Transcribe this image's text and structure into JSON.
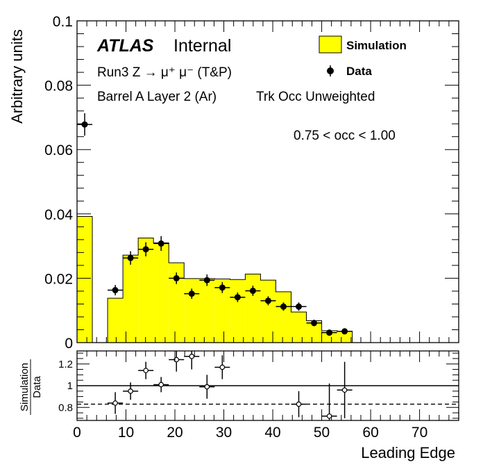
{
  "chart_data": [
    {
      "type": "bar",
      "role": "main",
      "ylabel": "Arbitrary units",
      "xlim": [
        0,
        78
      ],
      "ylim": [
        0,
        0.1
      ],
      "y_ticks": [
        0,
        0.02,
        0.04,
        0.06,
        0.08,
        0.1
      ],
      "y_tick_labels": [
        "0",
        "0.02",
        "0.04",
        "0.06",
        "0.08",
        "0.1"
      ],
      "annotations": {
        "atlas": "ATLAS",
        "internal": "Internal",
        "process": "Run3 Z → μ⁺ μ⁻ (T&P)",
        "region": "Barrel A Layer 2 (Ar)",
        "weighting": "Trk Occ Unweighted",
        "cut": "0.75 < occ < 1.00"
      },
      "legend": {
        "position": "top-right",
        "entries": [
          {
            "label": "Simulation",
            "style": "filled box",
            "color": "#ffff00"
          },
          {
            "label": "Data",
            "style": "marker",
            "color": "#000000"
          }
        ]
      },
      "series": [
        {
          "name": "Simulation",
          "kind": "histogram",
          "color": "#ffff00",
          "bin_edges": [
            0,
            3.125,
            6.25,
            9.375,
            12.5,
            15.625,
            18.75,
            21.875,
            25,
            28.125,
            31.25,
            34.375,
            37.5,
            40.625,
            43.75,
            46.875,
            50,
            53.125,
            56.25
          ],
          "values": [
            0.0392,
            0,
            0.0138,
            0.0272,
            0.0325,
            0.031,
            0.0248,
            0.0199,
            0.0199,
            0.0198,
            0.0196,
            0.0213,
            0.0194,
            0.0158,
            0.0095,
            0.0068,
            0.0037,
            0.0035
          ]
        },
        {
          "name": "Data",
          "kind": "points",
          "color": "#000000",
          "x": [
            1.5625,
            7.8125,
            10.9375,
            14.0625,
            17.1875,
            20.3125,
            23.4375,
            26.5625,
            29.6875,
            32.8125,
            35.9375,
            39.0625,
            42.1875,
            45.3125,
            48.4375,
            51.5625,
            54.6875
          ],
          "y": [
            0.0678,
            0.0163,
            0.0263,
            0.029,
            0.0308,
            0.02,
            0.0152,
            0.0194,
            0.0171,
            0.0141,
            0.0161,
            0.013,
            0.0112,
            0.0112,
            0.0061,
            0.0031,
            0.0035
          ],
          "y_err": [
            0.0035,
            0.0016,
            0.0021,
            0.0022,
            0.0023,
            0.0018,
            0.0016,
            0.0018,
            0.0017,
            0.0015,
            0.0016,
            0.0014,
            0.0013,
            0.0013,
            0.001,
            0.0007,
            0.0007
          ]
        }
      ]
    },
    {
      "type": "scatter",
      "role": "ratio",
      "ylabel_top": "Simulation",
      "ylabel_bottom": "Data",
      "xlabel": "Leading Edge",
      "xlim": [
        0,
        78
      ],
      "ylim": [
        0.68,
        1.32
      ],
      "y_ticks": [
        0.8,
        1,
        1.2
      ],
      "y_tick_labels": [
        "0.8",
        "1",
        "1.2"
      ],
      "x_ticks": [
        0,
        10,
        20,
        30,
        40,
        50,
        60,
        70
      ],
      "x_tick_labels": [
        "0",
        "10",
        "20",
        "30",
        "40",
        "50",
        "60",
        "70"
      ],
      "reference_lines": [
        {
          "y": 1.0,
          "style": "solid"
        },
        {
          "y": 0.83,
          "style": "dashed"
        }
      ],
      "series": [
        {
          "name": "Simulation / Data",
          "x": [
            7.8125,
            10.9375,
            14.0625,
            17.1875,
            20.3125,
            23.4375,
            26.5625,
            29.6875,
            45.3125,
            51.5625,
            54.6875
          ],
          "y": [
            0.84,
            0.95,
            1.14,
            1.01,
            1.24,
            1.27,
            0.99,
            1.17,
            0.83,
            0.72,
            0.96
          ],
          "y_err": [
            0.1,
            0.08,
            0.08,
            0.07,
            0.11,
            0.12,
            0.11,
            0.11,
            0.12,
            0.3,
            0.26
          ]
        }
      ]
    }
  ]
}
